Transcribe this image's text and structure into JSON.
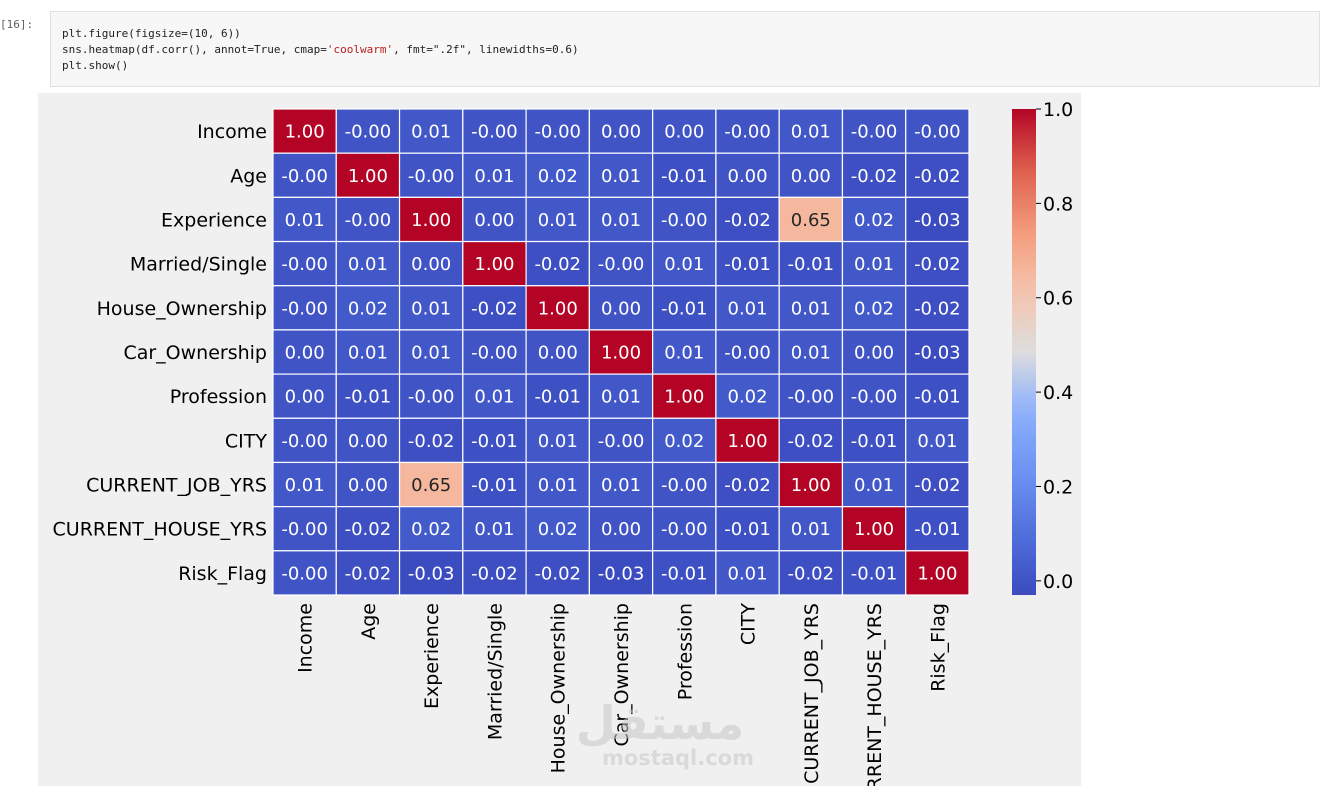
{
  "cell": {
    "prompt": "[16]:",
    "code_lines": [
      {
        "pre": "plt.figure(figsize=(10, 6))",
        "str": "",
        "post": ""
      },
      {
        "pre": "sns.heatmap(df.corr(), annot=True, cmap=",
        "str": "'coolwarm'",
        "post": ", fmt=\".2f\", linewidths=0.6)"
      },
      {
        "pre": "plt.show()",
        "str": "",
        "post": ""
      }
    ]
  },
  "watermark": {
    "arabic": "مستقل",
    "latin": "mostaql.com"
  },
  "chart_data": {
    "type": "heatmap",
    "cmap": "coolwarm",
    "labels": [
      "Income",
      "Age",
      "Experience",
      "Married/Single",
      "House_Ownership",
      "Car_Ownership",
      "Profession",
      "CITY",
      "CURRENT_JOB_YRS",
      "CURRENT_HOUSE_YRS",
      "Risk_Flag"
    ],
    "values": [
      [
        1.0,
        -0.0,
        0.01,
        -0.0,
        -0.0,
        0.0,
        0.0,
        -0.0,
        0.01,
        -0.0,
        -0.0
      ],
      [
        -0.0,
        1.0,
        -0.0,
        0.01,
        0.02,
        0.01,
        -0.01,
        0.0,
        0.0,
        -0.02,
        -0.02
      ],
      [
        0.01,
        -0.0,
        1.0,
        0.0,
        0.01,
        0.01,
        -0.0,
        -0.02,
        0.65,
        0.02,
        -0.03
      ],
      [
        -0.0,
        0.01,
        0.0,
        1.0,
        -0.02,
        -0.0,
        0.01,
        -0.01,
        -0.01,
        0.01,
        -0.02
      ],
      [
        -0.0,
        0.02,
        0.01,
        -0.02,
        1.0,
        0.0,
        -0.01,
        0.01,
        0.01,
        0.02,
        -0.02
      ],
      [
        0.0,
        0.01,
        0.01,
        -0.0,
        0.0,
        1.0,
        0.01,
        -0.0,
        0.01,
        0.0,
        -0.03
      ],
      [
        0.0,
        -0.01,
        -0.0,
        0.01,
        -0.01,
        0.01,
        1.0,
        0.02,
        -0.0,
        -0.0,
        -0.01
      ],
      [
        -0.0,
        0.0,
        -0.02,
        -0.01,
        0.01,
        -0.0,
        0.02,
        1.0,
        -0.02,
        -0.01,
        0.01
      ],
      [
        0.01,
        0.0,
        0.65,
        -0.01,
        0.01,
        0.01,
        -0.0,
        -0.02,
        1.0,
        0.01,
        -0.02
      ],
      [
        -0.0,
        -0.02,
        0.02,
        0.01,
        0.02,
        0.0,
        -0.0,
        -0.01,
        0.01,
        1.0,
        -0.01
      ],
      [
        -0.0,
        -0.02,
        -0.03,
        -0.02,
        -0.02,
        -0.03,
        -0.01,
        0.01,
        -0.02,
        -0.01,
        1.0
      ]
    ],
    "annot_fmt": ".2f",
    "colorbar": {
      "vmin": -0.03,
      "vmax": 1.0,
      "ticks": [
        "0.0",
        "0.2",
        "0.4",
        "0.6",
        "0.8",
        "1.0"
      ]
    }
  }
}
